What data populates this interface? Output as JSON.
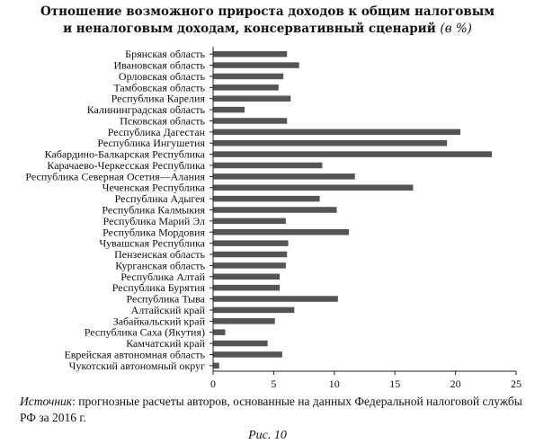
{
  "chart_data": {
    "type": "bar",
    "orientation": "horizontal",
    "title_line1": "Отношение возможного прироста доходов к общим налоговым",
    "title_line2": "и неналоговым доходам, консервативный сценарий",
    "title_unit": "(в %)",
    "categories": [
      "Брянская область",
      "Ивановская область",
      "Орловская область",
      "Тамбовская область",
      "Республика Карелия",
      "Калининградская область",
      "Псковская область",
      "Республика Дагестан",
      "Республика Ингушетия",
      "Кабардино-Балкарская Республика",
      "Карачаево-Черкесская Республика",
      "Республика Северная Осетия—Алания",
      "Чеченская Республика",
      "Республика Адыгея",
      "Республика Калмыкия",
      "Республика Марий Эл",
      "Республика Мордовия",
      "Чувашская Республика",
      "Пензенская область",
      "Курганская область",
      "Республика Алтай",
      "Республика Бурятия",
      "Республика Тыва",
      "Алтайский край",
      "Забайкальский край",
      "Республика Саха (Якутия)",
      "Камчатский край",
      "Еврейская автономная область",
      "Чукотский автономный округ"
    ],
    "values": [
      6.1,
      7.1,
      5.8,
      5.4,
      6.4,
      2.6,
      6.1,
      20.4,
      19.3,
      23.0,
      9.0,
      11.7,
      16.5,
      8.8,
      10.2,
      6.0,
      11.2,
      6.2,
      6.1,
      6.0,
      5.5,
      5.5,
      10.3,
      6.7,
      5.1,
      1.0,
      4.5,
      5.7,
      0.5
    ],
    "xlim": [
      0,
      25
    ],
    "xticks": [
      0,
      5,
      10,
      15,
      20,
      25
    ],
    "bar_color": "#555555",
    "grid": false
  },
  "source": {
    "lead": "Источник",
    "text": ": прогнозные расчеты авторов, основанные на данных Федеральной налоговой службы РФ за 2016 г."
  },
  "figure_caption": "Рис. 10"
}
